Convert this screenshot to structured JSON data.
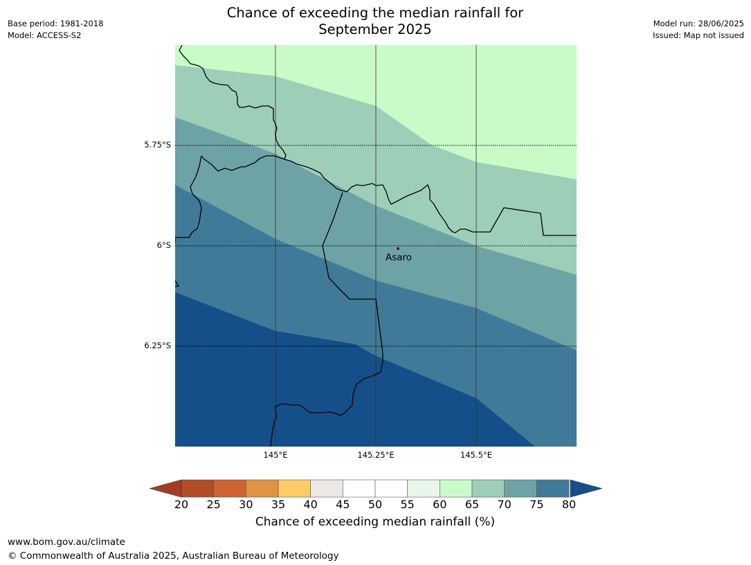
{
  "title_line1": "Chance of exceeding the median rainfall for",
  "title_line2": "September 2025",
  "meta_left": {
    "base_period": "Base period: 1981-2018",
    "model": "Model: ACCESS-S2"
  },
  "meta_right": {
    "model_run": "Model run: 28/06/2025",
    "issued": "Issued: Map not issued"
  },
  "map": {
    "lat_labels": [
      "5.75°S",
      "6°S",
      "6.25°S"
    ],
    "lon_labels": [
      "145°E",
      "145.25°E",
      "145.5°E"
    ],
    "place": {
      "name": "Asaro"
    },
    "band_colors": [
      "#c9fbc9",
      "#9dcfb8",
      "#6ea3a6",
      "#417a99",
      "#154f89"
    ],
    "band_values": [
      "60-65",
      "65-70",
      "70-75",
      "75-80",
      ">80"
    ]
  },
  "colorbar": {
    "ticks": [
      "20",
      "25",
      "30",
      "35",
      "40",
      "45",
      "50",
      "55",
      "60",
      "65",
      "70",
      "75",
      "80"
    ],
    "colors": [
      "#a33e24",
      "#b24d27",
      "#cd6432",
      "#e29245",
      "#fecb66",
      "#ece8e4",
      "#ffffff",
      "#ffffff",
      "#e9f7ea",
      "#c9fbc9",
      "#9dcfb8",
      "#6ea3a6",
      "#417a99",
      "#154f89"
    ],
    "label": "Chance of exceeding median rainfall (%)"
  },
  "footer": {
    "url": "www.bom.gov.au/climate",
    "copyright": "© Commonwealth of Australia 2025, Australian Bureau of Meteorology"
  }
}
